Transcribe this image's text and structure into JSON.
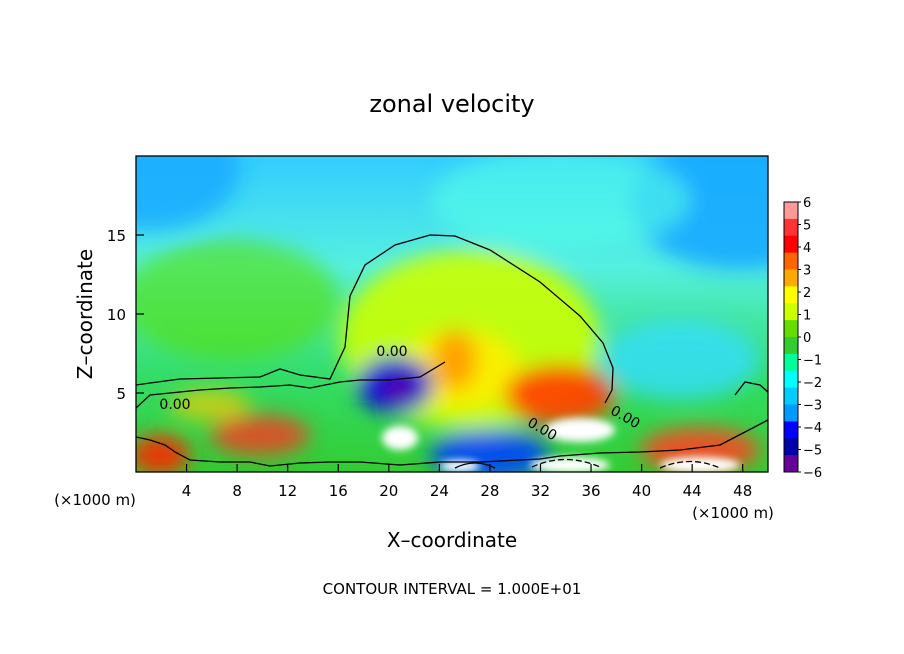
{
  "chart_data": {
    "type": "heatmap",
    "title": "zonal velocity",
    "xlabel": "X–coordinate",
    "ylabel": "Z–coordinate",
    "x_unit": "(×1000 m)",
    "z_unit": "(×1000 m)",
    "footer": "CONTOUR INTERVAL = 1.000E+01",
    "xlim": [
      0,
      50
    ],
    "ylim": [
      0,
      20
    ],
    "xticks": [
      4,
      8,
      12,
      16,
      20,
      24,
      28,
      32,
      36,
      40,
      44,
      48
    ],
    "yticks": [
      5,
      10,
      15
    ],
    "contour_label": "0.00",
    "colorbar": {
      "min": -6,
      "max": 6,
      "ticks": [
        "6",
        "5",
        "4",
        "3",
        "2",
        "1",
        "0",
        "−1",
        "−2",
        "−3",
        "−4",
        "−5",
        "−6"
      ],
      "colors": [
        "#ff9999",
        "#ff3333",
        "#ff0000",
        "#ff6600",
        "#ffaa00",
        "#ffff00",
        "#ccff00",
        "#66dd00",
        "#33cc33",
        "#00ff99",
        "#00ffff",
        "#00ccff",
        "#0099ff",
        "#0000ff",
        "#0000aa",
        "#660099"
      ]
    },
    "fields": [
      {
        "x": 3,
        "z": 19,
        "value": -2.5
      },
      {
        "x": 47,
        "z": 18,
        "value": -2.5
      },
      {
        "x": 24,
        "z": 19,
        "value": -1.0
      },
      {
        "x": 24,
        "z": 8,
        "value": 1.5
      },
      {
        "x": 27,
        "z": 6.5,
        "value": 2.5
      },
      {
        "x": 20.5,
        "z": 5,
        "value": -5.5
      },
      {
        "x": 34,
        "z": 4.5,
        "value": 3.5
      },
      {
        "x": 34,
        "z": 2.5,
        "value": 6.5
      },
      {
        "x": 21,
        "z": 2,
        "value": 6.5
      },
      {
        "x": 28,
        "z": 1,
        "value": -3.5
      },
      {
        "x": 10,
        "z": 2,
        "value": 4.0
      },
      {
        "x": 2,
        "z": 1,
        "value": 5.0
      },
      {
        "x": 40,
        "z": 6,
        "value": -2.0
      },
      {
        "x": 44,
        "z": 9,
        "value": -2.5
      }
    ]
  }
}
